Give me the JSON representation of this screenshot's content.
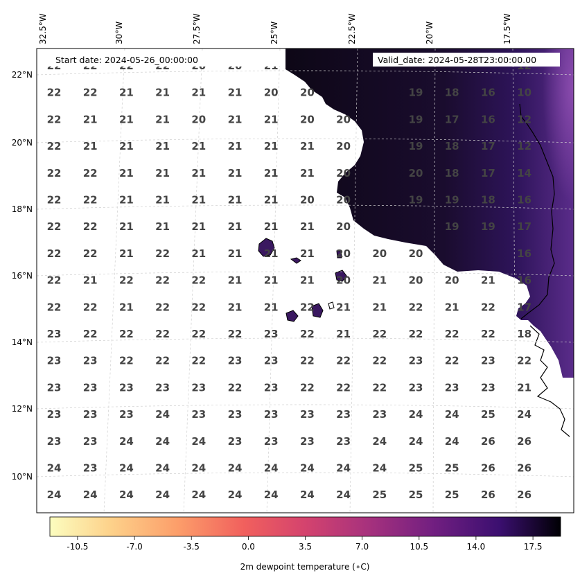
{
  "header": {
    "start_date": "Start date: 2024-05-26_00:00:00",
    "valid_date": "Valid_date: 2024-05-28T23:00:00.00"
  },
  "axes": {
    "lon_labels": [
      "32.5°W",
      "30°W",
      "27.5°W",
      "25°W",
      "22.5°W",
      "20°W",
      "17.5°W"
    ],
    "lat_labels": [
      "22°N",
      "20°N",
      "18°N",
      "16°N",
      "14°N",
      "12°N",
      "10°N"
    ]
  },
  "colorbar": {
    "label": "2m dewpoint temperature (∘C)",
    "ticks": [
      "-10.5",
      "-7.0",
      "-3.5",
      "0.0",
      "3.5",
      "7.0",
      "10.5",
      "14.0",
      "17.5"
    ],
    "min": -12.2,
    "max": 19.2,
    "colormap": "magma_r"
  },
  "grid_values": [
    [
      "22",
      "22",
      "22",
      "22",
      "20",
      "20",
      "21",
      "",
      "",
      "",
      "",
      "",
      "",
      "12"
    ],
    [
      "22",
      "22",
      "21",
      "21",
      "21",
      "21",
      "20",
      "20",
      "",
      "",
      "19",
      "18",
      "16",
      "10"
    ],
    [
      "22",
      "21",
      "21",
      "21",
      "20",
      "21",
      "21",
      "20",
      "20",
      "",
      "19",
      "17",
      "16",
      "12"
    ],
    [
      "22",
      "21",
      "21",
      "21",
      "21",
      "21",
      "21",
      "21",
      "20",
      "",
      "19",
      "18",
      "17",
      "12"
    ],
    [
      "22",
      "22",
      "21",
      "21",
      "21",
      "21",
      "21",
      "21",
      "20",
      "",
      "20",
      "18",
      "17",
      "14"
    ],
    [
      "22",
      "22",
      "21",
      "21",
      "21",
      "21",
      "21",
      "20",
      "20",
      "",
      "19",
      "19",
      "18",
      "16"
    ],
    [
      "22",
      "22",
      "21",
      "21",
      "21",
      "21",
      "21",
      "21",
      "20",
      "",
      "",
      "19",
      "19",
      "17"
    ],
    [
      "22",
      "22",
      "21",
      "22",
      "21",
      "21",
      "21",
      "21",
      "20",
      "20",
      "20",
      "",
      "",
      "16"
    ],
    [
      "22",
      "21",
      "22",
      "22",
      "22",
      "21",
      "21",
      "21",
      "20",
      "21",
      "20",
      "20",
      "21",
      "16"
    ],
    [
      "22",
      "22",
      "21",
      "22",
      "22",
      "21",
      "21",
      "22",
      "21",
      "21",
      "22",
      "21",
      "22",
      "17"
    ],
    [
      "23",
      "22",
      "22",
      "22",
      "22",
      "22",
      "23",
      "22",
      "21",
      "22",
      "22",
      "22",
      "22",
      "18"
    ],
    [
      "23",
      "23",
      "22",
      "22",
      "22",
      "23",
      "23",
      "22",
      "22",
      "22",
      "23",
      "22",
      "23",
      "22"
    ],
    [
      "23",
      "23",
      "23",
      "23",
      "23",
      "22",
      "23",
      "22",
      "22",
      "22",
      "23",
      "23",
      "23",
      "21"
    ],
    [
      "23",
      "23",
      "23",
      "24",
      "23",
      "23",
      "23",
      "23",
      "23",
      "23",
      "24",
      "24",
      "25",
      "24"
    ],
    [
      "23",
      "23",
      "24",
      "24",
      "24",
      "23",
      "23",
      "23",
      "23",
      "24",
      "24",
      "24",
      "26",
      "26"
    ],
    [
      "24",
      "23",
      "24",
      "24",
      "24",
      "24",
      "24",
      "24",
      "24",
      "24",
      "25",
      "25",
      "26",
      "26"
    ],
    [
      "24",
      "24",
      "24",
      "24",
      "24",
      "24",
      "24",
      "24",
      "24",
      "25",
      "25",
      "25",
      "26",
      "26"
    ]
  ]
}
